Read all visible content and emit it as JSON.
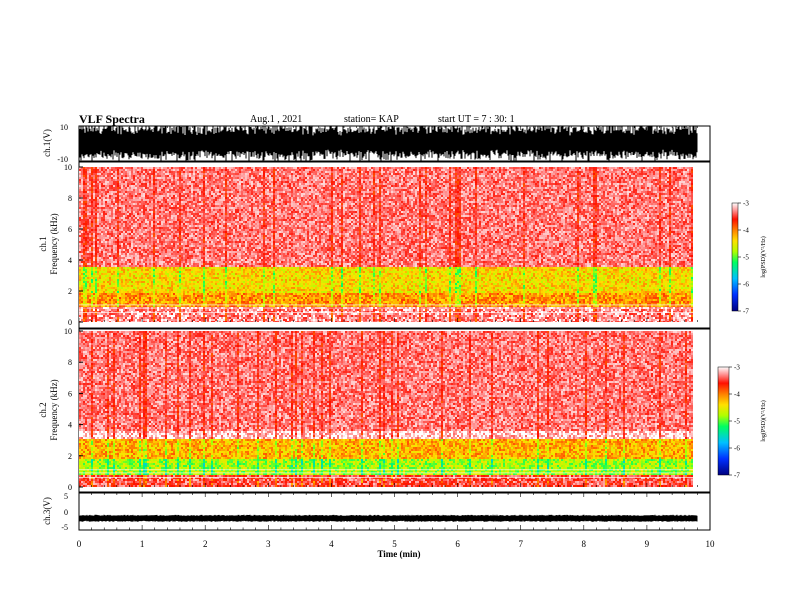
{
  "header": {
    "title": "VLF Spectra",
    "date": "Aug.1 , 2021",
    "station": "station= KAP",
    "start": "start UT = 7 : 30: 1"
  },
  "colors": {
    "spectrogram_scale": [
      "#0000a0",
      "#0040ff",
      "#00c0ff",
      "#00ff80",
      "#40ff00",
      "#d0ff00",
      "#ffd000",
      "#ff8000",
      "#ff2000",
      "#ff8080",
      "#ffffff"
    ],
    "waveform": "#000000"
  },
  "chart_data": [
    {
      "type": "line",
      "name": "ch1-waveform",
      "ylabel": "ch.1(V)",
      "ylim": [
        -10,
        10
      ],
      "yticks": [
        "10",
        "-10"
      ],
      "xlim": [
        0,
        10
      ],
      "note_values": "dense oscillation spanning roughly -10 to +10 V over 0 to 9.8 min"
    },
    {
      "type": "heatmap",
      "name": "ch1-spectrogram",
      "ylabel_top": "ch.1",
      "ylabel": "Frequency (kHz)",
      "ylim": [
        0,
        10
      ],
      "yticks": [
        "0",
        "2",
        "4",
        "6",
        "8",
        "10"
      ],
      "xlim": [
        0,
        9.8
      ],
      "colorbar": {
        "label": "log(PSD)(V²/Hz)",
        "range": [
          -7,
          -3
        ],
        "ticks": [
          "-3",
          "-4",
          "-5",
          "-6",
          "-7"
        ]
      },
      "bands": [
        {
          "freq_khz": [
            0,
            1.0
          ],
          "level": -3.2
        },
        {
          "freq_khz": [
            1.0,
            2.0
          ],
          "level": -4.1
        },
        {
          "freq_khz": [
            2.0,
            3.6
          ],
          "level": -4.4
        },
        {
          "freq_khz": [
            3.6,
            10.0
          ],
          "level": -3.0
        }
      ]
    },
    {
      "type": "heatmap",
      "name": "ch2-spectrogram",
      "ylabel_top": "ch.2",
      "ylabel": "Frequency (kHz)",
      "ylim": [
        0,
        10
      ],
      "yticks": [
        "0",
        "2",
        "4",
        "6",
        "8",
        "10"
      ],
      "xlim": [
        0,
        9.8
      ],
      "colorbar": {
        "label": "log(PSD)(V²/Hz)",
        "range": [
          -7,
          -3
        ],
        "ticks": [
          "-3",
          "-4",
          "-5",
          "-6",
          "-7"
        ]
      },
      "bands": [
        {
          "freq_khz": [
            0,
            0.8
          ],
          "level": -3.4
        },
        {
          "freq_khz": [
            0.8,
            1.8
          ],
          "level": -4.8
        },
        {
          "freq_khz": [
            1.8,
            3.2
          ],
          "level": -4.2
        },
        {
          "freq_khz": [
            3.2,
            10.0
          ],
          "level": -3.0
        }
      ]
    },
    {
      "type": "line",
      "name": "ch3-waveform",
      "ylabel": "ch.3(V)",
      "ylim": [
        -5,
        5
      ],
      "yticks": [
        "5",
        "0",
        "-5"
      ],
      "xlim": [
        0,
        10
      ],
      "xlabel": "Time (min)",
      "xticks": [
        "0",
        "1",
        "2",
        "3",
        "4",
        "5",
        "6",
        "7",
        "8",
        "9",
        "10"
      ],
      "level_v": -2.2
    }
  ]
}
